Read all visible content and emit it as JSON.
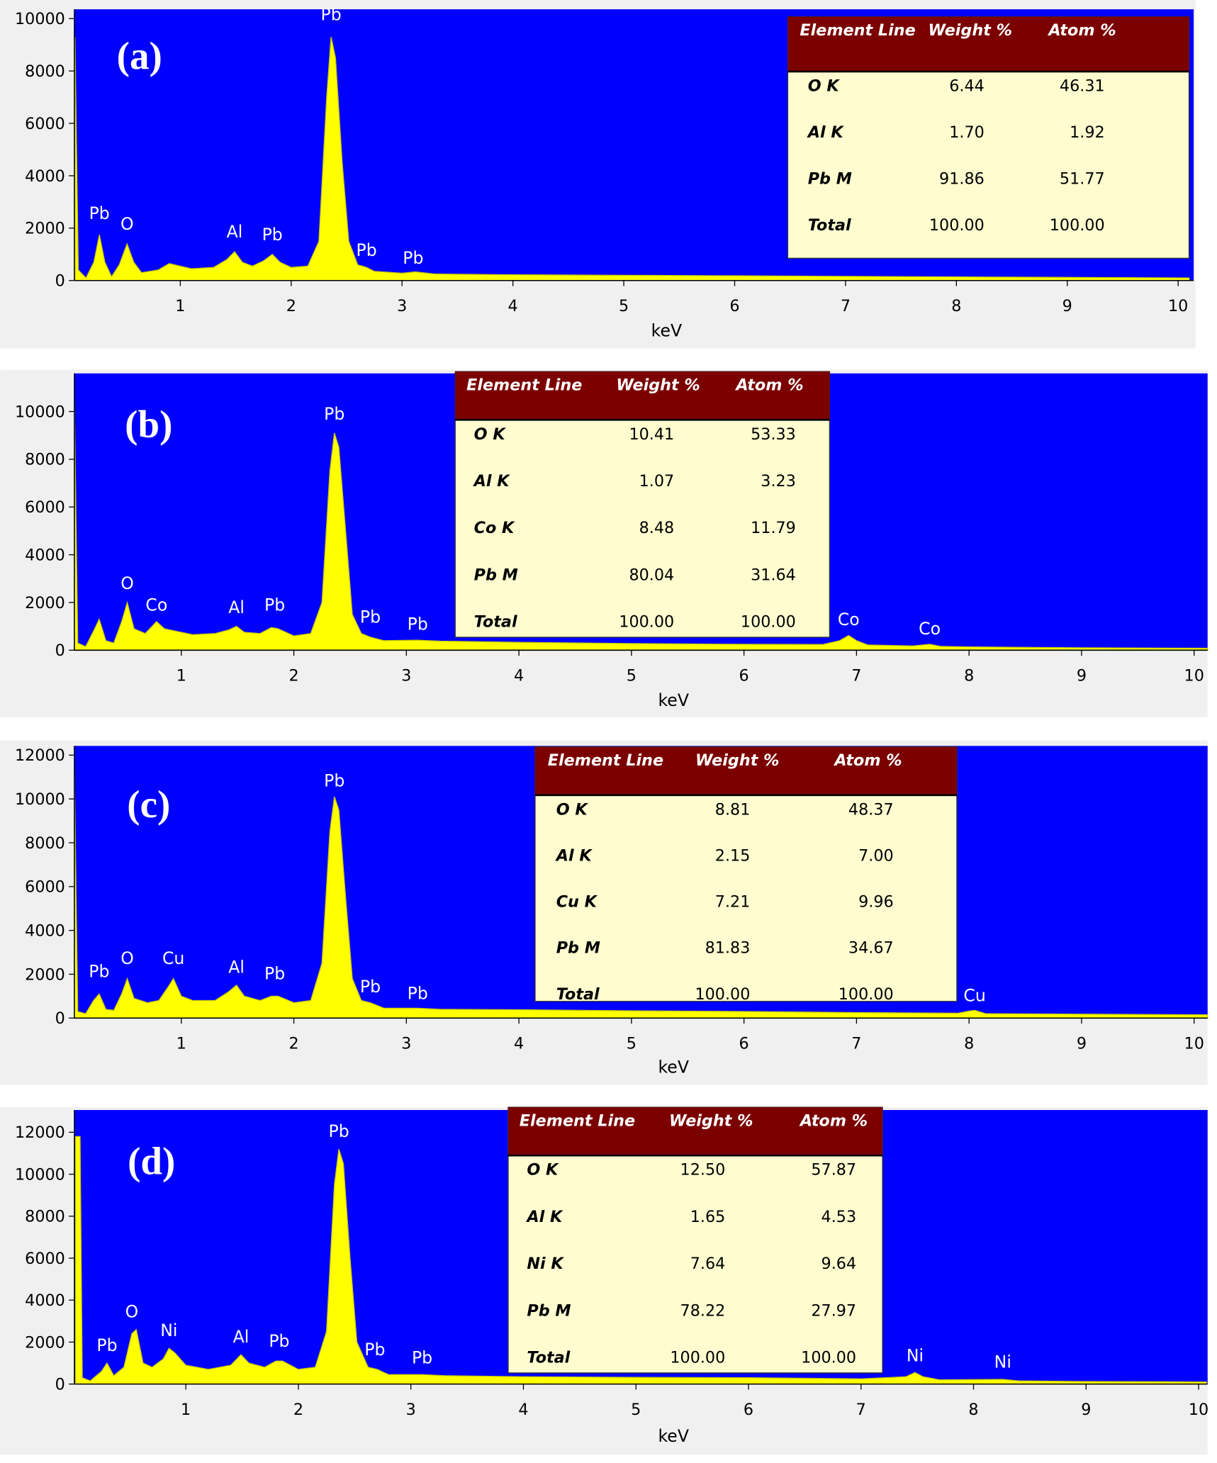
{
  "chart_data": [
    {
      "type": "area",
      "label": "(a)",
      "xlabel": "keV",
      "color": "#ffff00",
      "x": [
        0.05,
        0.08,
        0.15,
        0.22,
        0.27,
        0.32,
        0.38,
        0.45,
        0.52,
        0.58,
        0.65,
        0.8,
        0.9,
        1.0,
        1.1,
        1.3,
        1.42,
        1.49,
        1.56,
        1.65,
        1.75,
        1.83,
        1.9,
        2.0,
        2.15,
        2.25,
        2.32,
        2.36,
        2.4,
        2.46,
        2.52,
        2.6,
        2.68,
        2.75,
        3.0,
        3.12,
        3.3,
        4,
        5,
        6,
        7,
        8,
        9,
        10.1
      ],
      "values": [
        9300,
        400,
        100,
        700,
        1750,
        700,
        150,
        600,
        1400,
        700,
        300,
        400,
        650,
        550,
        450,
        500,
        800,
        1100,
        700,
        550,
        750,
        1000,
        700,
        500,
        550,
        1500,
        7000,
        9300,
        8500,
        4500,
        1500,
        600,
        500,
        350,
        280,
        330,
        250,
        220,
        200,
        180,
        160,
        140,
        120,
        100
      ],
      "annotations": [
        {
          "text": "Pb",
          "x": 0.27,
          "y": 2200
        },
        {
          "text": "O",
          "x": 0.52,
          "y": 1800
        },
        {
          "text": "Al",
          "x": 1.49,
          "y": 1500
        },
        {
          "text": "Pb",
          "x": 1.83,
          "y": 1400
        },
        {
          "text": "Pb",
          "x": 2.36,
          "y": 9800
        },
        {
          "text": "Pb",
          "x": 2.68,
          "y": 800
        },
        {
          "text": "Pb",
          "x": 3.1,
          "y": 500
        }
      ],
      "xlim": [
        0.045,
        10.14
      ],
      "ylim": [
        0,
        10355
      ],
      "xticks": [
        1,
        2,
        3,
        4,
        5,
        6,
        7,
        8,
        9,
        10
      ],
      "yticks": [
        0,
        2000,
        4000,
        6000,
        8000,
        10000
      ],
      "table": {
        "columns": [
          "Element Line",
          "Weight %",
          "Atom %"
        ],
        "rows": [
          [
            "O K",
            "6.44",
            "46.31"
          ],
          [
            "Al K",
            "1.70",
            "1.92"
          ],
          [
            "Pb M",
            "91.86",
            "51.77"
          ],
          [
            "Total",
            "100.00",
            "100.00"
          ]
        ]
      }
    },
    {
      "type": "area",
      "label": "(b)",
      "xlabel": "keV",
      "color": "#ffff00",
      "x": [
        0.05,
        0.08,
        0.15,
        0.22,
        0.27,
        0.33,
        0.4,
        0.47,
        0.52,
        0.58,
        0.68,
        0.78,
        0.85,
        0.95,
        1.1,
        1.3,
        1.42,
        1.49,
        1.56,
        1.7,
        1.8,
        1.86,
        2.0,
        2.15,
        2.25,
        2.32,
        2.36,
        2.4,
        2.46,
        2.52,
        2.6,
        2.68,
        2.8,
        3.1,
        3.3,
        4,
        5,
        6,
        6.7,
        6.85,
        6.93,
        7.0,
        7.1,
        7.5,
        7.65,
        7.75,
        8,
        9,
        10.12
      ],
      "values": [
        10400,
        300,
        150,
        800,
        1300,
        400,
        300,
        1200,
        2000,
        900,
        700,
        1200,
        900,
        800,
        650,
        700,
        850,
        1000,
        750,
        700,
        950,
        900,
        600,
        700,
        2000,
        7500,
        9100,
        8500,
        5000,
        1500,
        700,
        550,
        400,
        420,
        380,
        330,
        280,
        250,
        240,
        400,
        620,
        400,
        220,
        180,
        250,
        160,
        140,
        100,
        80
      ],
      "annotations": [
        {
          "text": "O",
          "x": 0.52,
          "y": 2400
        },
        {
          "text": "Co",
          "x": 0.78,
          "y": 1500
        },
        {
          "text": "Al",
          "x": 1.49,
          "y": 1400
        },
        {
          "text": "Pb",
          "x": 1.83,
          "y": 1500
        },
        {
          "text": "Pb",
          "x": 2.36,
          "y": 9500
        },
        {
          "text": "Pb",
          "x": 2.68,
          "y": 1000
        },
        {
          "text": "Pb",
          "x": 3.1,
          "y": 700
        },
        {
          "text": "Co",
          "x": 6.93,
          "y": 900
        },
        {
          "text": "Co",
          "x": 7.65,
          "y": 500
        }
      ],
      "xlim": [
        0.05,
        10.12
      ],
      "ylim": [
        0,
        11595
      ],
      "xticks": [
        1,
        2,
        3,
        4,
        5,
        6,
        7,
        8,
        9,
        10
      ],
      "yticks": [
        0,
        2000,
        4000,
        6000,
        8000,
        10000
      ],
      "table": {
        "columns": [
          "Element Line",
          "Weight %",
          "Atom %"
        ],
        "rows": [
          [
            "O K",
            "10.41",
            "53.33"
          ],
          [
            "Al K",
            "1.07",
            "3.23"
          ],
          [
            "Co K",
            "8.48",
            "11.79"
          ],
          [
            "Pb M",
            "80.04",
            "31.64"
          ],
          [
            "Total",
            "100.00",
            "100.00"
          ]
        ]
      }
    },
    {
      "type": "area",
      "label": "(c)",
      "xlabel": "keV",
      "color": "#ffff00",
      "x": [
        0.05,
        0.08,
        0.15,
        0.22,
        0.27,
        0.33,
        0.4,
        0.47,
        0.52,
        0.58,
        0.7,
        0.8,
        0.88,
        0.93,
        1.0,
        1.1,
        1.3,
        1.42,
        1.49,
        1.56,
        1.7,
        1.8,
        1.86,
        2.0,
        2.15,
        2.25,
        2.32,
        2.36,
        2.4,
        2.46,
        2.52,
        2.6,
        2.68,
        2.8,
        3.1,
        3.3,
        4,
        5,
        6,
        7,
        7.9,
        8.0,
        8.05,
        8.15,
        9,
        10.12
      ],
      "values": [
        11200,
        300,
        200,
        800,
        1100,
        400,
        350,
        1100,
        1800,
        900,
        700,
        800,
        1400,
        1800,
        1000,
        800,
        800,
        1200,
        1500,
        1000,
        800,
        1000,
        1000,
        700,
        800,
        2500,
        8500,
        10100,
        9500,
        5500,
        1800,
        800,
        700,
        450,
        450,
        400,
        380,
        330,
        300,
        250,
        220,
        320,
        350,
        200,
        180,
        150
      ],
      "annotations": [
        {
          "text": "Pb",
          "x": 0.27,
          "y": 1700
        },
        {
          "text": "O",
          "x": 0.52,
          "y": 2300
        },
        {
          "text": "Cu",
          "x": 0.93,
          "y": 2300
        },
        {
          "text": "Al",
          "x": 1.49,
          "y": 1900
        },
        {
          "text": "Pb",
          "x": 1.83,
          "y": 1600
        },
        {
          "text": "Pb",
          "x": 2.36,
          "y": 10400
        },
        {
          "text": "Pb",
          "x": 2.68,
          "y": 1000
        },
        {
          "text": "Pb",
          "x": 3.1,
          "y": 700
        },
        {
          "text": "Cu",
          "x": 8.05,
          "y": 600
        }
      ],
      "xlim": [
        0.05,
        10.12
      ],
      "ylim": [
        0,
        12420
      ],
      "xticks": [
        1,
        2,
        3,
        4,
        5,
        6,
        7,
        8,
        9,
        10
      ],
      "yticks": [
        0,
        2000,
        4000,
        6000,
        8000,
        10000,
        12000
      ],
      "table": {
        "columns": [
          "Element Line",
          "Weight %",
          "Atom %"
        ],
        "rows": [
          [
            "O K",
            "8.81",
            "48.37"
          ],
          [
            "Al K",
            "2.15",
            "7.00"
          ],
          [
            "Cu K",
            "7.21",
            "9.96"
          ],
          [
            "Pb M",
            "81.83",
            "34.67"
          ],
          [
            "Total",
            "100.00",
            "100.00"
          ]
        ]
      }
    },
    {
      "type": "area",
      "label": "(d)",
      "xlabel": "keV",
      "color": "#ffff00",
      "x": [
        0.02,
        0.06,
        0.08,
        0.15,
        0.25,
        0.3,
        0.36,
        0.45,
        0.52,
        0.56,
        0.62,
        0.7,
        0.8,
        0.85,
        0.9,
        1.0,
        1.2,
        1.4,
        1.49,
        1.56,
        1.7,
        1.8,
        1.86,
        2.0,
        2.15,
        2.25,
        2.32,
        2.36,
        2.4,
        2.46,
        2.52,
        2.62,
        2.7,
        2.8,
        3.1,
        3.3,
        4,
        5,
        6,
        7,
        7.4,
        7.48,
        7.55,
        7.7,
        8.26,
        8.4,
        9,
        10.07
      ],
      "values": [
        11800,
        11800,
        300,
        150,
        600,
        1000,
        400,
        800,
        2400,
        2600,
        1000,
        800,
        1200,
        1700,
        1500,
        900,
        700,
        900,
        1400,
        1000,
        800,
        1100,
        1100,
        700,
        800,
        2500,
        9500,
        11200,
        10500,
        6000,
        2000,
        800,
        700,
        450,
        450,
        400,
        350,
        320,
        300,
        250,
        350,
        550,
        350,
        200,
        220,
        150,
        120,
        100
      ],
      "annotations": [
        {
          "text": "Pb",
          "x": 0.3,
          "y": 1400
        },
        {
          "text": "O",
          "x": 0.52,
          "y": 3000
        },
        {
          "text": "Ni",
          "x": 0.85,
          "y": 2100
        },
        {
          "text": "Al",
          "x": 1.49,
          "y": 1800
        },
        {
          "text": "Pb",
          "x": 1.83,
          "y": 1600
        },
        {
          "text": "Pb",
          "x": 2.36,
          "y": 11600
        },
        {
          "text": "Pb",
          "x": 2.68,
          "y": 1200
        },
        {
          "text": "Pb",
          "x": 3.1,
          "y": 800
        },
        {
          "text": "Ni",
          "x": 7.48,
          "y": 900
        },
        {
          "text": "Ni",
          "x": 8.26,
          "y": 600
        }
      ],
      "xlim": [
        0.01,
        10.08
      ],
      "ylim": [
        0,
        13060
      ],
      "xticks": [
        1,
        2,
        3,
        4,
        5,
        6,
        7,
        8,
        9,
        10
      ],
      "yticks": [
        0,
        2000,
        4000,
        6000,
        8000,
        10000,
        12000
      ],
      "table": {
        "columns": [
          "Element Line",
          "Weight %",
          "Atom %"
        ],
        "rows": [
          [
            "O K",
            "12.50",
            "57.87"
          ],
          [
            "Al K",
            "1.65",
            "4.53"
          ],
          [
            "Ni K",
            "7.64",
            "9.64"
          ],
          [
            "Pb M",
            "78.22",
            "27.97"
          ],
          [
            "Total",
            "100.00",
            "100.00"
          ]
        ]
      }
    }
  ]
}
